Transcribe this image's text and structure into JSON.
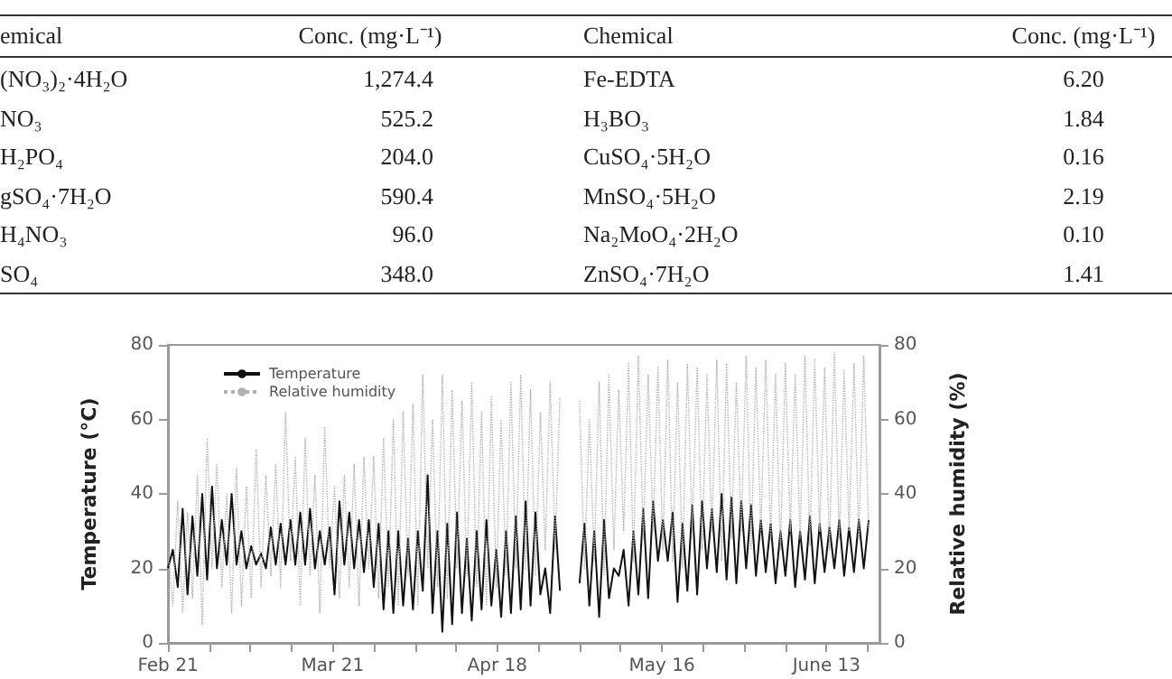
{
  "chart_data": [
    {
      "type": "other",
      "annotations": [
        "emical",
        "Conc. (mg·L⁻¹)",
        "Chemical",
        "Conc. (mg·L⁻¹)",
        "(NO₃)₂·4H₂O",
        "1,274.4",
        "Fe-EDTA",
        "6.20",
        "NO₃",
        "525.2",
        "H₃BO₃",
        "1.84",
        "H₂PO₄",
        "204.0",
        "CuSO₄·5H₂O",
        "0.16",
        "gSO₄·7H₂O",
        "590.4",
        "MnSO₄·5H₂O",
        "2.19",
        "H₄NO₃",
        "96.0",
        "Na₂MoO₄·2H₂O",
        "0.10",
        "SO₄",
        "348.0",
        "ZnSO₄·7H₂O",
        "1.41"
      ]
    },
    {
      "type": "line",
      "ylabel": "Temperature (°C)",
      "y2label": "Relative humidity (%)",
      "legend": "top left",
      "grid": false,
      "marker": "none",
      "x": [
        "--02-21T00:00",
        "--02-21T20:00",
        "--02-22T16:00",
        "--02-23T12:00",
        "--02-24T08:00",
        "--02-25T04:00",
        "--02-26T00:00",
        "--02-26T20:00",
        "--02-27T16:00",
        "--02-28T12:00",
        "--03-01T08:00",
        "--03-02T04:00",
        "--03-03T00:00",
        "--03-03T20:00",
        "--03-04T16:00",
        "--03-05T12:00",
        "--03-06T08:00",
        "--03-07T04:00",
        "--03-08T00:00",
        "--03-08T20:00",
        "--03-09T16:00",
        "--03-10T12:00",
        "--03-11T08:00",
        "--03-12T04:00",
        "--03-13T00:00",
        "--03-13T20:00",
        "--03-14T16:00",
        "--03-15T12:00",
        "--03-16T08:00",
        "--03-17T04:00",
        "--03-18T00:00",
        "--03-18T20:00",
        "--03-19T16:00",
        "--03-20T12:00",
        "--03-21T08:00",
        "--03-22T04:00",
        "--03-23T00:00",
        "--03-23T20:00",
        "--03-24T16:00",
        "--03-25T12:00",
        "--03-26T08:00",
        "--03-27T04:00",
        "--03-28T00:00",
        "--03-28T20:00",
        "--03-29T16:00",
        "--03-30T12:00",
        "--03-31T08:00",
        "--04-01T04:00",
        "--04-02T00:00",
        "--04-02T20:00",
        "--04-03T16:00",
        "--04-04T12:00",
        "--04-05T08:00",
        "--04-06T04:00",
        "--04-07T00:00",
        "--04-07T20:00",
        "--04-08T16:00",
        "--04-09T12:00",
        "--04-10T08:00",
        "--04-11T04:00",
        "--04-12T00:00",
        "--04-12T20:00",
        "--04-13T16:00",
        "--04-14T12:00",
        "--04-15T08:00",
        "--04-16T04:00",
        "--04-17T00:00",
        "--04-17T20:00",
        "--04-18T16:00",
        "--04-19T12:00",
        "--04-20T08:00",
        "--04-21T04:00",
        "--04-22T00:00",
        "--04-22T20:00",
        "--04-23T16:00",
        "--04-24T12:00",
        "--04-25T08:00",
        "--04-26T04:00",
        "--04-27T00:00",
        "--04-27T20:00",
        "--04-28T16:00",
        "--04-29T12:00",
        "--04-30T08:00",
        "--05-01T04:00",
        "--05-02T00:00",
        "--05-02T20:00",
        "--05-03T16:00",
        "--05-04T12:00",
        "--05-05T08:00",
        "--05-06T04:00",
        "--05-07T00:00",
        "--05-07T20:00",
        "--05-08T16:00",
        "--05-09T12:00",
        "--05-10T08:00",
        "--05-11T04:00",
        "--05-12T00:00",
        "--05-12T20:00",
        "--05-13T16:00",
        "--05-14T12:00",
        "--05-15T08:00",
        "--05-16T04:00",
        "--05-17T00:00",
        "--05-17T20:00",
        "--05-18T16:00",
        "--05-19T12:00",
        "--05-20T08:00",
        "--05-21T04:00",
        "--05-22T00:00",
        "--05-22T20:00",
        "--05-23T16:00",
        "--05-24T12:00",
        "--05-25T08:00",
        "--05-26T04:00",
        "--05-27T00:00",
        "--05-27T20:00",
        "--05-28T16:00",
        "--05-29T12:00",
        "--05-30T08:00",
        "--05-31T04:00",
        "--06-01T00:00",
        "--06-01T20:00",
        "--06-02T16:00",
        "--06-03T12:00",
        "--06-04T08:00",
        "--06-05T04:00",
        "--06-06T00:00",
        "--06-06T20:00",
        "--06-07T16:00",
        "--06-08T12:00",
        "--06-09T08:00",
        "--06-10T04:00",
        "--06-11T00:00",
        "--06-11T20:00",
        "--06-12T16:00",
        "--06-13T12:00",
        "--06-14T08:00",
        "--06-15T04:00",
        "--06-16T00:00",
        "--06-16T20:00",
        "--06-17T16:00",
        "--06-18T12:00",
        "--06-19T08:00",
        "--06-20T04:00"
      ],
      "xlim": [
        "--02-21T00:00",
        "--06-22T00:00"
      ],
      "xticks": [
        {
          "value": "--02-21T00:00",
          "label": "Feb 21"
        },
        {
          "value": "--02-28T00:00",
          "label": null
        },
        {
          "value": "--03-07T00:00",
          "label": null
        },
        {
          "value": "--03-14T00:00",
          "label": null
        },
        {
          "value": "--03-21T00:00",
          "label": "Mar 21"
        },
        {
          "value": "--03-28T00:00",
          "label": null
        },
        {
          "value": "--04-04T00:00",
          "label": null
        },
        {
          "value": "--04-11T00:00",
          "label": null
        },
        {
          "value": "--04-18T00:00",
          "label": "Apr 18"
        },
        {
          "value": "--04-25T00:00",
          "label": null
        },
        {
          "value": "--05-02T00:00",
          "label": null
        },
        {
          "value": "--05-09T00:00",
          "label": null
        },
        {
          "value": "--05-16T00:00",
          "label": "May 16"
        },
        {
          "value": "--05-23T00:00",
          "label": null
        },
        {
          "value": "--05-30T00:00",
          "label": null
        },
        {
          "value": "--06-06T00:00",
          "label": null
        },
        {
          "value": "--06-13T00:00",
          "label": "June 13"
        },
        {
          "value": "--06-20T00:00",
          "label": null
        }
      ],
      "ylim": [
        0,
        80
      ],
      "yticks": [
        0,
        20,
        40,
        60,
        80
      ],
      "y2lim": [
        0,
        80
      ],
      "y2ticks": [
        0,
        20,
        40,
        60,
        80
      ],
      "series": [
        {
          "name": "Temperature",
          "color": "#111111",
          "line_style": "solid",
          "values": [
            20,
            25,
            15,
            36,
            13,
            34,
            18,
            40,
            17,
            42,
            20,
            33,
            21,
            40,
            21,
            30,
            20,
            26,
            21,
            24,
            20,
            31,
            21,
            32,
            21,
            33,
            21,
            35,
            21,
            36,
            20,
            30,
            21,
            31,
            13,
            38,
            21,
            35,
            20,
            33,
            19,
            33,
            15,
            32,
            9,
            30,
            8,
            30,
            10,
            28,
            9,
            30,
            14,
            45,
            8,
            30,
            3,
            32,
            5,
            35,
            8,
            28,
            6,
            30,
            9,
            33,
            10,
            25,
            7,
            30,
            8,
            34,
            9,
            38,
            10,
            35,
            13,
            20,
            8,
            34,
            14,
            null,
            null,
            null,
            16,
            32,
            10,
            30,
            7,
            33,
            12,
            20,
            18,
            25,
            10,
            30,
            13,
            36,
            12,
            38,
            22,
            33,
            22,
            35,
            11,
            32,
            14,
            37,
            13,
            38,
            20,
            36,
            19,
            40,
            17,
            39,
            16,
            38,
            20,
            37,
            18,
            33,
            19,
            32,
            16,
            30,
            18,
            33,
            15,
            30,
            17,
            34,
            16,
            32,
            19,
            31,
            20,
            33,
            18,
            31,
            19,
            33,
            20,
            33
          ]
        },
        {
          "name": "Relative humidity",
          "color": "#b0b0b0",
          "line_style": "dotted",
          "axis": "y2",
          "values": [
            25,
            10,
            38,
            8,
            35,
            12,
            45,
            5,
            55,
            20,
            48,
            15,
            40,
            8,
            47,
            10,
            42,
            12,
            52,
            15,
            45,
            18,
            48,
            15,
            62,
            22,
            50,
            10,
            55,
            18,
            45,
            8,
            58,
            20,
            42,
            12,
            45,
            15,
            48,
            10,
            50,
            20,
            50,
            12,
            55,
            15,
            60,
            10,
            62,
            18,
            64,
            10,
            72,
            20,
            60,
            15,
            72,
            12,
            68,
            20,
            65,
            18,
            70,
            15,
            62,
            10,
            66,
            15,
            60,
            18,
            70,
            20,
            72,
            20,
            68,
            18,
            62,
            25,
            70,
            25,
            66,
            null,
            null,
            null,
            65,
            20,
            60,
            22,
            70,
            18,
            72,
            25,
            68,
            30,
            75,
            22,
            77,
            28,
            72,
            30,
            74,
            25,
            76,
            22,
            70,
            20,
            75,
            30,
            74,
            25,
            72,
            30,
            76,
            22,
            75,
            28,
            70,
            30,
            77,
            25,
            74,
            30,
            76,
            28,
            72,
            25,
            75,
            30,
            72,
            28,
            77,
            26,
            76,
            30,
            74,
            25,
            78,
            28,
            73,
            30,
            75,
            28,
            77,
            30
          ]
        }
      ]
    }
  ]
}
